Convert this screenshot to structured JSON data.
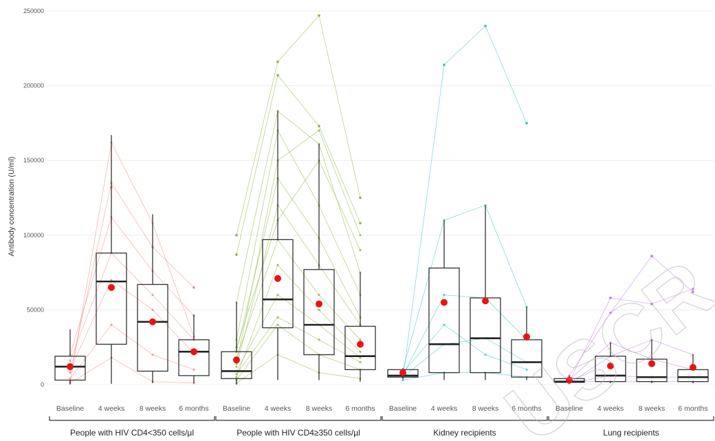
{
  "chart_data": {
    "type": "box",
    "ylabel": "Antibody concentration (U/ml)",
    "ylim": [
      0,
      250000
    ],
    "yticks": [
      0,
      50000,
      100000,
      150000,
      200000,
      250000
    ],
    "ytick_labels": [
      "0",
      "50000",
      "100000",
      "150000",
      "200000",
      "250000"
    ],
    "grid": true,
    "timepoints": [
      "Baseline",
      "4 weeks",
      "8 weeks",
      "6 months"
    ],
    "mean_color": "#ee1111",
    "groups": [
      {
        "label": "People with HIV  CD4<350 cells/µl",
        "color": "#f08a80",
        "boxes": [
          {
            "timepoint": "Baseline",
            "whisker_low": 100,
            "q1": 3000,
            "median": 12000,
            "q3": 19000,
            "whisker_high": 37000,
            "mean": 12000
          },
          {
            "timepoint": "4 weeks",
            "whisker_low": 500,
            "q1": 27000,
            "median": 69000,
            "q3": 88000,
            "whisker_high": 167000,
            "mean": 65000
          },
          {
            "timepoint": "8 weeks",
            "whisker_low": 1000,
            "q1": 9000,
            "median": 42000,
            "q3": 67000,
            "whisker_high": 114000,
            "mean": 42000
          },
          {
            "timepoint": "6 months",
            "whisker_low": 1000,
            "q1": 6000,
            "median": 22000,
            "q3": 30000,
            "whisker_high": 47000,
            "mean": 22000
          }
        ]
      },
      {
        "label": "People with HIV  CD4≥350 cells/µl",
        "color": "#8db63c",
        "boxes": [
          {
            "timepoint": "Baseline",
            "whisker_low": 0,
            "q1": 4000,
            "median": 9000,
            "q3": 22000,
            "whisker_high": 55000,
            "mean": 16500
          },
          {
            "timepoint": "4 weeks",
            "whisker_low": 3000,
            "q1": 38000,
            "median": 57000,
            "q3": 97000,
            "whisker_high": 183000,
            "mean": 71000
          },
          {
            "timepoint": "8 weeks",
            "whisker_low": 3000,
            "q1": 20000,
            "median": 40000,
            "q3": 77000,
            "whisker_high": 161000,
            "mean": 54000
          },
          {
            "timepoint": "6 months",
            "whisker_low": 2000,
            "q1": 10000,
            "median": 19000,
            "q3": 39000,
            "whisker_high": 75000,
            "mean": 27000
          }
        ]
      },
      {
        "label": "Kidney recipients",
        "color": "#2ec4c6",
        "boxes": [
          {
            "timepoint": "Baseline",
            "whisker_low": 4000,
            "q1": 5000,
            "median": 6000,
            "q3": 10000,
            "whisker_high": 11000,
            "mean": 8000
          },
          {
            "timepoint": "4 weeks",
            "whisker_low": 3000,
            "q1": 8000,
            "median": 27000,
            "q3": 78000,
            "whisker_high": 110000,
            "mean": 55000
          },
          {
            "timepoint": "8 weeks",
            "whisker_low": 3000,
            "q1": 8000,
            "median": 31000,
            "q3": 58000,
            "whisker_high": 120000,
            "mean": 56000
          },
          {
            "timepoint": "6 months",
            "whisker_low": 3000,
            "q1": 5000,
            "median": 15000,
            "q3": 30000,
            "whisker_high": 52000,
            "mean": 32000
          }
        ]
      },
      {
        "label": "Lung recipients",
        "color": "#c07ae0",
        "boxes": [
          {
            "timepoint": "Baseline",
            "whisker_low": 1000,
            "q1": 1500,
            "median": 2000,
            "q3": 4000,
            "whisker_high": 6000,
            "mean": 3000
          },
          {
            "timepoint": "4 weeks",
            "whisker_low": 1000,
            "q1": 2000,
            "median": 6000,
            "q3": 19000,
            "whisker_high": 28000,
            "mean": 12500
          },
          {
            "timepoint": "8 weeks",
            "whisker_low": 1000,
            "q1": 2000,
            "median": 5000,
            "q3": 17000,
            "whisker_high": 30000,
            "mean": 14000
          },
          {
            "timepoint": "6 months",
            "whisker_low": 1000,
            "q1": 2000,
            "median": 5000,
            "q3": 10000,
            "whisker_high": 20000,
            "mean": 11500
          }
        ]
      }
    ],
    "outlier_points": [
      {
        "group": 0,
        "timepoint": 1,
        "value": 132000
      },
      {
        "group": 0,
        "timepoint": 2,
        "value": 92000
      },
      {
        "group": 0,
        "timepoint": 3,
        "value": 65000
      },
      {
        "group": 1,
        "timepoint": 0,
        "value": 100000
      },
      {
        "group": 1,
        "timepoint": 0,
        "value": 87000
      },
      {
        "group": 1,
        "timepoint": 1,
        "value": 216000
      },
      {
        "group": 1,
        "timepoint": 1,
        "value": 207000
      },
      {
        "group": 1,
        "timepoint": 2,
        "value": 247000
      },
      {
        "group": 1,
        "timepoint": 2,
        "value": 173000
      },
      {
        "group": 1,
        "timepoint": 3,
        "value": 125000
      },
      {
        "group": 1,
        "timepoint": 3,
        "value": 108000
      },
      {
        "group": 2,
        "timepoint": 1,
        "value": 214000
      },
      {
        "group": 2,
        "timepoint": 2,
        "value": 240000
      },
      {
        "group": 2,
        "timepoint": 3,
        "value": 175000
      },
      {
        "group": 3,
        "timepoint": 1,
        "value": 58000
      },
      {
        "group": 3,
        "timepoint": 1,
        "value": 48000
      },
      {
        "group": 3,
        "timepoint": 2,
        "value": 54000
      },
      {
        "group": 3,
        "timepoint": 2,
        "value": 86000
      },
      {
        "group": 3,
        "timepoint": 3,
        "value": 64000
      },
      {
        "group": 3,
        "timepoint": 3,
        "value": 62000
      }
    ],
    "subject_trajectories": [
      {
        "group": 0,
        "values": [
          2000,
          162000,
          108000,
          32000
        ]
      },
      {
        "group": 0,
        "values": [
          8000,
          135000,
          92000,
          65000
        ]
      },
      {
        "group": 0,
        "values": [
          16000,
          88000,
          60000,
          30000
        ]
      },
      {
        "group": 0,
        "values": [
          4000,
          40000,
          20000,
          10000
        ]
      },
      {
        "group": 0,
        "values": [
          1000,
          18000,
          2000,
          1000
        ]
      },
      {
        "group": 0,
        "values": [
          20000,
          112000,
          76000,
          46000
        ]
      },
      {
        "group": 0,
        "values": [
          10000,
          70000,
          50000,
          21000
        ]
      },
      {
        "group": 1,
        "values": [
          100000,
          216000,
          247000,
          125000
        ]
      },
      {
        "group": 1,
        "values": [
          87000,
          207000,
          173000,
          108000
        ]
      },
      {
        "group": 1,
        "values": [
          55000,
          183000,
          161000,
          75000
        ]
      },
      {
        "group": 1,
        "values": [
          30000,
          170000,
          120000,
          60000
        ]
      },
      {
        "group": 1,
        "values": [
          22000,
          138000,
          98000,
          45000
        ]
      },
      {
        "group": 1,
        "values": [
          12000,
          120000,
          80000,
          40000
        ]
      },
      {
        "group": 1,
        "values": [
          18000,
          97000,
          60000,
          30000
        ]
      },
      {
        "group": 1,
        "values": [
          5000,
          80000,
          50000,
          22000
        ]
      },
      {
        "group": 1,
        "values": [
          9000,
          60000,
          40000,
          18000
        ]
      },
      {
        "group": 1,
        "values": [
          3000,
          40000,
          20000,
          10000
        ]
      },
      {
        "group": 1,
        "values": [
          1000,
          20000,
          8000,
          4000
        ]
      },
      {
        "group": 1,
        "values": [
          14000,
          150000,
          170000,
          100000
        ]
      },
      {
        "group": 1,
        "values": [
          25000,
          110000,
          150000,
          90000
        ]
      },
      {
        "group": 1,
        "values": [
          7000,
          45000,
          30000,
          15000
        ]
      },
      {
        "group": 2,
        "values": [
          4000,
          214000,
          240000,
          175000
        ]
      },
      {
        "group": 2,
        "values": [
          10000,
          110000,
          120000,
          52000
        ]
      },
      {
        "group": 2,
        "values": [
          6000,
          60000,
          58000,
          30000
        ]
      },
      {
        "group": 2,
        "values": [
          5000,
          27000,
          31000,
          15000
        ]
      },
      {
        "group": 2,
        "values": [
          3000,
          8000,
          8000,
          5000
        ]
      },
      {
        "group": 2,
        "values": [
          8000,
          40000,
          20000,
          10000
        ]
      },
      {
        "group": 3,
        "values": [
          2000,
          58000,
          54000,
          64000
        ]
      },
      {
        "group": 3,
        "values": [
          1000,
          19000,
          30000,
          20000
        ]
      },
      {
        "group": 3,
        "values": [
          6000,
          48000,
          86000,
          62000
        ]
      },
      {
        "group": 3,
        "values": [
          3000,
          28000,
          17000,
          10000
        ]
      },
      {
        "group": 3,
        "values": [
          1000,
          6000,
          5000,
          5000
        ]
      },
      {
        "group": 3,
        "values": [
          2000,
          2000,
          2000,
          2000
        ]
      }
    ]
  }
}
